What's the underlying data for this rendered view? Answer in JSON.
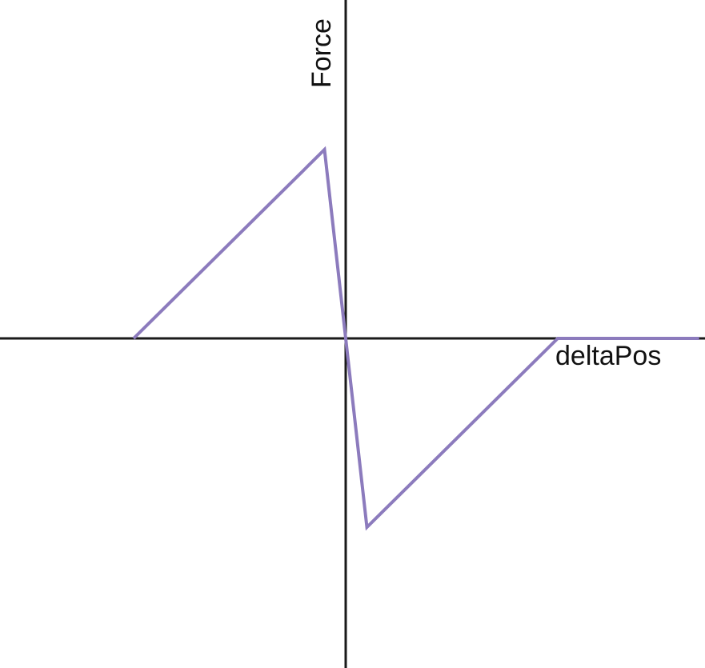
{
  "chart_data": {
    "type": "line",
    "xlabel": "deltaPos",
    "ylabel": "Force",
    "axes_cross_at_origin": true,
    "grid": false,
    "xlim": [
      -10,
      10
    ],
    "ylim": [
      -10,
      10
    ],
    "series": [
      {
        "color": "#8c7bbd",
        "x": [
          -6,
          -0.6,
          0,
          0.6,
          6,
          10
        ],
        "y": [
          0,
          5.4,
          0,
          -5.4,
          0,
          0
        ]
      }
    ]
  }
}
